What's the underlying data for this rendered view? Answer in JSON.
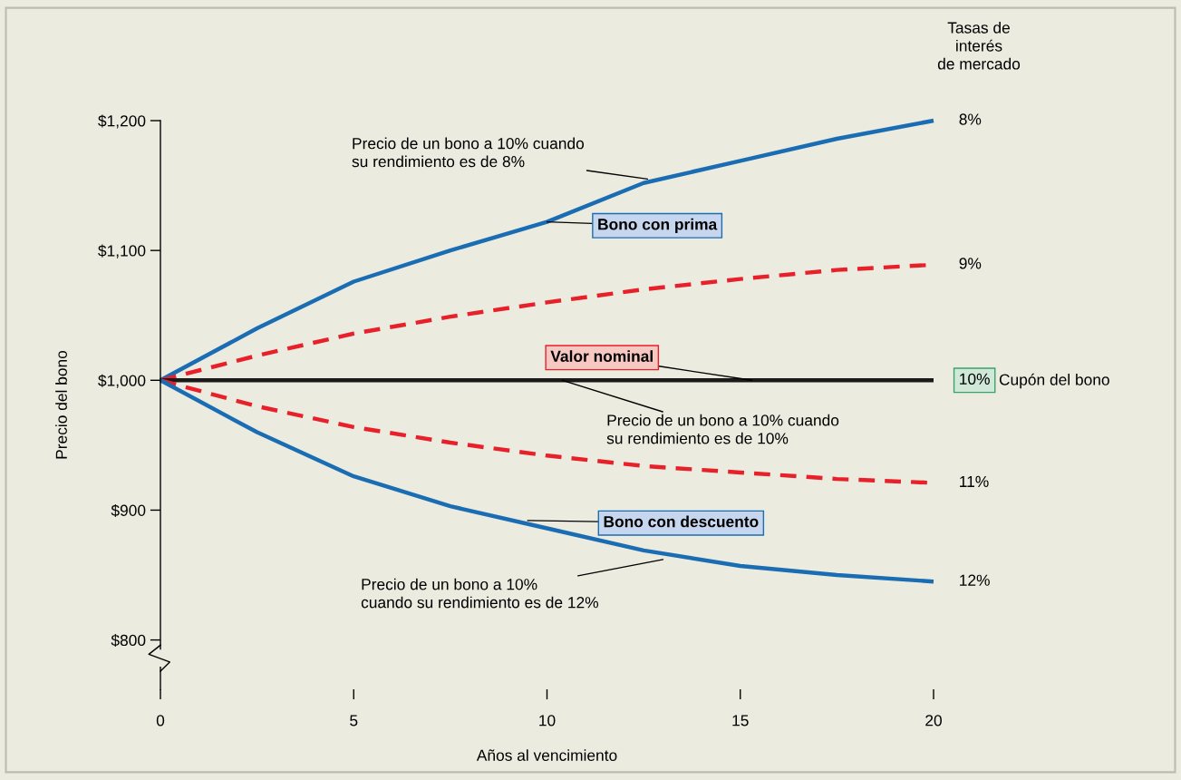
{
  "chart_data": {
    "type": "line",
    "xlabel": "Años al vencimiento",
    "ylabel": "Precio del bono",
    "x": [
      0,
      2.5,
      5,
      7.5,
      10,
      12.5,
      15,
      17.5,
      20
    ],
    "series": [
      {
        "name": "8%",
        "color": "#1b6db3",
        "line_style": "solid",
        "values": [
          1000,
          1040,
          1076,
          1100,
          1122,
          1152,
          1169,
          1186,
          1200
        ]
      },
      {
        "name": "9%",
        "color": "#e8202a",
        "line_style": "dashed",
        "values": [
          1000,
          1019,
          1036,
          1049,
          1060,
          1070,
          1078,
          1085,
          1089
        ]
      },
      {
        "name": "10%",
        "color": "#1a1a1a",
        "line_style": "solid",
        "values": [
          1000,
          1000,
          1000,
          1000,
          1000,
          1000,
          1000,
          1000,
          1000
        ]
      },
      {
        "name": "11%",
        "color": "#e8202a",
        "line_style": "dashed",
        "values": [
          1000,
          980,
          964,
          952,
          942,
          934,
          929,
          924,
          921
        ]
      },
      {
        "name": "12%",
        "color": "#1b6db3",
        "line_style": "solid",
        "values": [
          1000,
          960,
          926,
          903,
          886,
          869,
          857,
          850,
          845
        ]
      }
    ],
    "xlim": [
      0,
      20
    ],
    "xticks": [
      0,
      5,
      10,
      15,
      20
    ],
    "ylim": [
      762,
      1200
    ],
    "yticks": [
      {
        "value": 800,
        "label": "$800"
      },
      {
        "value": 900,
        "label": "$900"
      },
      {
        "value": 1000,
        "label": "$1,000"
      },
      {
        "value": 1100,
        "label": "$1,100"
      },
      {
        "value": 1200,
        "label": "$1,200"
      }
    ],
    "grid": false,
    "legend": false,
    "marker": "none",
    "annotations": [
      {
        "text": "Precio de un bono a 10% cuando\nsu rendimiento es de 8%",
        "x": 12.6,
        "y": 1155
      },
      {
        "text": "Bono con prima",
        "x": 10,
        "y": 1122
      },
      {
        "text": "Valor nominal",
        "x": 15.3,
        "y": 1000
      },
      {
        "text": "Precio de un bono a 10% cuando\nsu rendimiento es de 10%",
        "x": 10.4,
        "y": 1000
      },
      {
        "text": "Bono con descuento",
        "x": 9.5,
        "y": 892
      },
      {
        "text": "Precio de un bono a 10%\ncuando su rendimiento es de 12%",
        "x": 13.0,
        "y": 862
      },
      "Tasas de\ninterés\nde mercado",
      "Cupón del bono"
    ]
  }
}
